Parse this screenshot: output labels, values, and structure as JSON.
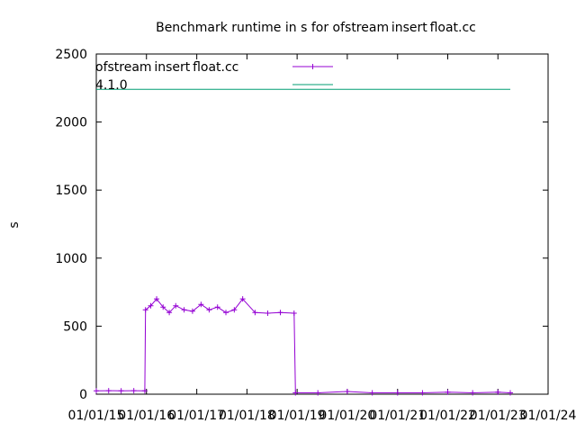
{
  "chart_data": {
    "type": "line",
    "title": "Benchmark runtime in s for ofstream insert float.cc",
    "ylabel": "s",
    "xlabel": "",
    "ylim": [
      0,
      2500
    ],
    "yticks": [
      0,
      500,
      1000,
      1500,
      2000,
      2500
    ],
    "xlim": [
      "2015-01-01",
      "2024-01-01"
    ],
    "xticks": [
      "01/01/15",
      "01/01/16",
      "01/01/17",
      "01/01/18",
      "01/01/19",
      "01/01/20",
      "01/01/21",
      "01/01/22",
      "01/01/23",
      "01/01/24"
    ],
    "xtick_dates": [
      "2015-01-01",
      "2016-01-01",
      "2017-01-01",
      "2018-01-01",
      "2019-01-01",
      "2020-01-01",
      "2021-01-01",
      "2022-01-01",
      "2023-01-01",
      "2024-01-01"
    ],
    "grid": false,
    "legend_position": "top-left",
    "series": [
      {
        "name": "ofstream insert float.cc",
        "color": "#9400d3",
        "marker": "plus",
        "points": [
          [
            "2015-01-01",
            25
          ],
          [
            "2015-04-01",
            26
          ],
          [
            "2015-07-01",
            25
          ],
          [
            "2015-10-01",
            26
          ],
          [
            "2015-12-20",
            25
          ],
          [
            "2015-12-25",
            620
          ],
          [
            "2016-02-01",
            650
          ],
          [
            "2016-03-15",
            700
          ],
          [
            "2016-05-01",
            640
          ],
          [
            "2016-06-15",
            600
          ],
          [
            "2016-08-01",
            650
          ],
          [
            "2016-10-01",
            620
          ],
          [
            "2016-12-01",
            610
          ],
          [
            "2017-02-01",
            660
          ],
          [
            "2017-04-01",
            620
          ],
          [
            "2017-06-01",
            640
          ],
          [
            "2017-08-01",
            600
          ],
          [
            "2017-10-01",
            620
          ],
          [
            "2017-12-01",
            700
          ],
          [
            "2018-03-01",
            600
          ],
          [
            "2018-06-01",
            595
          ],
          [
            "2018-09-01",
            600
          ],
          [
            "2018-12-10",
            595
          ],
          [
            "2018-12-20",
            10
          ],
          [
            "2019-06-01",
            10
          ],
          [
            "2020-01-01",
            20
          ],
          [
            "2020-07-01",
            10
          ],
          [
            "2021-01-01",
            10
          ],
          [
            "2021-07-01",
            10
          ],
          [
            "2022-01-01",
            15
          ],
          [
            "2022-07-01",
            10
          ],
          [
            "2023-01-01",
            15
          ],
          [
            "2023-04-01",
            10
          ]
        ]
      },
      {
        "name": "4.1.0",
        "color": "#009e73",
        "marker": "none",
        "points": [
          [
            "2015-01-01",
            2240
          ],
          [
            "2023-04-01",
            2240
          ]
        ]
      }
    ]
  }
}
